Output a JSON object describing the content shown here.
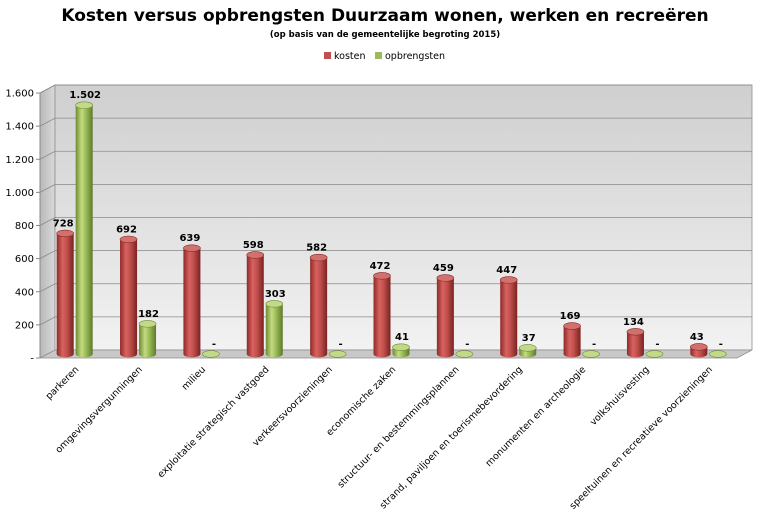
{
  "chart_data": {
    "type": "bar",
    "title": "Kosten versus opbrengsten Duurzaam wonen, werken en recreëren",
    "subtitle": "(op basis van de gemeentelijke begroting 2015)",
    "categories": [
      "parkeren",
      "omgevingsvergunningen",
      "milieu",
      "exploitatie strategisch vastgoed",
      "verkeersvoorzieningen",
      "economische zaken",
      "structuur- en bestemmingsplannen",
      "strand, paviljoen en toerismebevordering",
      "monumenten en archeologie",
      "volkshuisvesting",
      "speeltuinen en recreatieve voorzieningen"
    ],
    "series": [
      {
        "name": "kosten",
        "color": "#c0504d",
        "values": [
          728,
          692,
          639,
          598,
          582,
          472,
          459,
          447,
          169,
          134,
          43
        ],
        "labels": [
          "728",
          "692",
          "639",
          "598",
          "582",
          "472",
          "459",
          "447",
          "169",
          "134",
          "43"
        ]
      },
      {
        "name": "opbrengsten",
        "color": "#9bbb59",
        "values": [
          1502,
          182,
          0,
          303,
          0,
          41,
          0,
          37,
          0,
          0,
          0
        ],
        "labels": [
          "1.502",
          "182",
          "-",
          "303",
          "-",
          "41",
          "-",
          "37",
          "-",
          "-",
          "-"
        ]
      }
    ],
    "ylim": [
      0,
      1600
    ],
    "yticks": [
      0,
      200,
      400,
      600,
      800,
      1000,
      1200,
      1400,
      1600
    ],
    "ytick_labels": [
      "-",
      "200",
      "400",
      "600",
      "800",
      "1.000",
      "1.200",
      "1.400",
      "1.600"
    ],
    "grid": true,
    "legend_position": "top-center",
    "style": "3d-cylinder"
  }
}
